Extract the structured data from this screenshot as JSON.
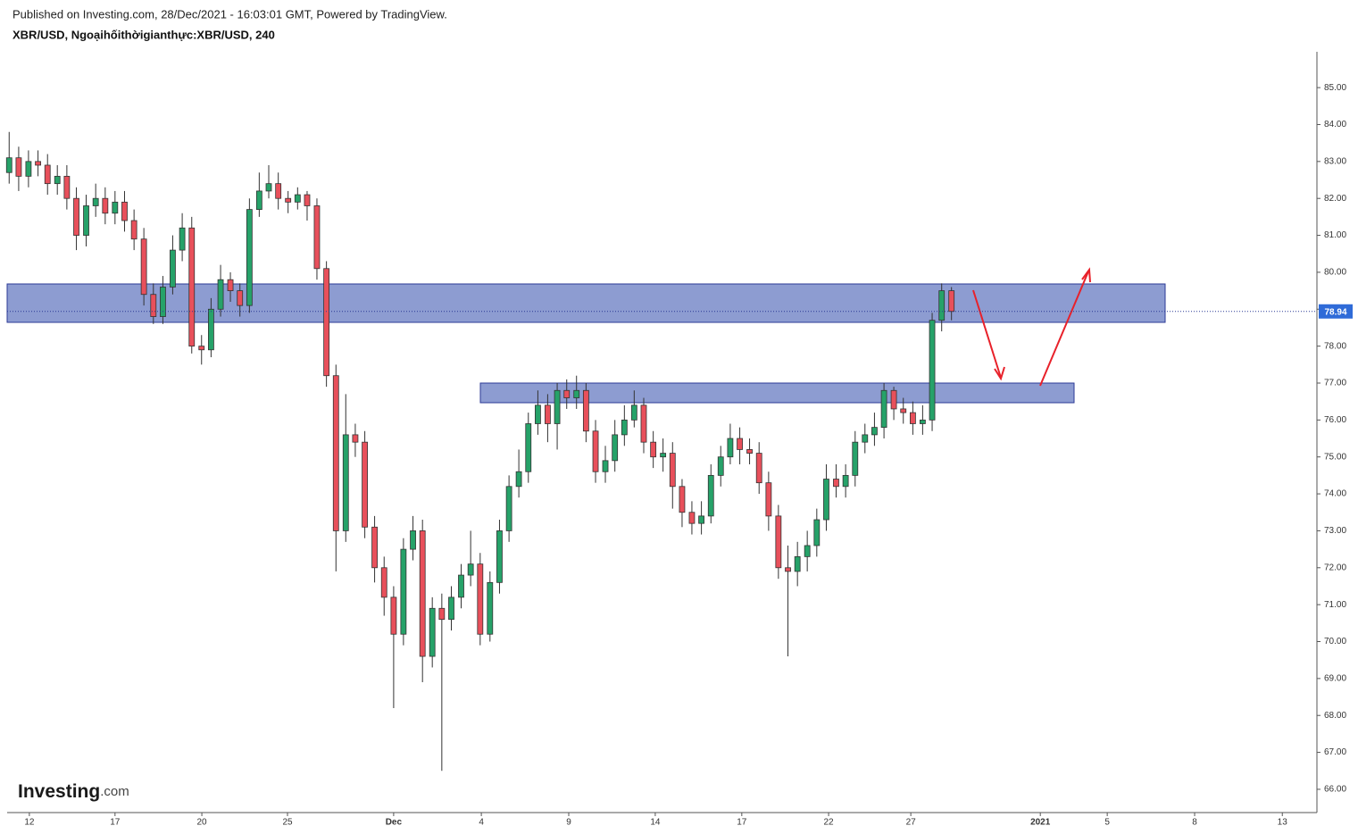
{
  "header": {
    "published": "Published on Investing.com, 28/Dec/2021 - 16:03:01 GMT, Powered by TradingView.",
    "symbol": "XBR/USD, Ngoạihốithờigianthực:XBR/USD, 240"
  },
  "logo": {
    "brand": "Investing",
    "suffix": ".com"
  },
  "chart_data": {
    "type": "candlestick",
    "up_color": "#26a269",
    "down_color": "#e8505b",
    "x": [
      -0.7,
      -0.37,
      -0.03,
      0.3,
      0.63,
      0.97,
      1.3,
      1.63,
      1.97,
      2.3,
      2.63,
      2.97,
      3.3,
      3.63,
      3.97,
      4.3,
      4.63,
      4.97,
      5.3,
      5.63,
      5.97,
      6.3,
      6.63,
      6.97,
      7.3,
      7.63,
      7.97,
      8.3,
      8.63,
      8.97,
      9.3,
      9.63,
      9.97,
      10.3,
      10.63,
      10.97,
      11.3,
      11.63,
      11.97,
      12.3,
      12.63,
      12.97,
      13.3,
      13.63,
      13.97,
      14.3,
      14.63,
      14.97,
      15.3,
      15.63,
      15.97,
      16.3,
      16.63,
      16.97,
      17.3,
      17.63,
      17.97,
      18.3,
      18.63,
      18.97,
      19.3,
      19.63,
      19.97,
      20.3,
      20.63,
      20.97,
      21.3,
      21.63,
      21.97,
      22.3,
      22.63,
      22.97,
      23.3,
      23.63,
      23.97,
      24.3,
      24.63,
      24.97,
      25.3,
      25.63,
      25.97,
      26.3,
      26.63,
      26.97,
      27.3,
      27.63,
      27.97,
      28.3,
      28.63,
      28.97,
      29.3,
      29.63,
      29.97,
      30.3,
      30.63,
      30.97,
      31.3,
      31.63,
      31.97
    ],
    "open": [
      82.7,
      83.1,
      82.6,
      83.0,
      82.9,
      82.4,
      82.6,
      82.0,
      81.0,
      81.8,
      82.0,
      81.6,
      81.9,
      81.4,
      80.9,
      79.4,
      78.8,
      79.6,
      80.6,
      81.2,
      78.0,
      77.9,
      79.0,
      79.8,
      79.5,
      79.1,
      81.7,
      82.2,
      82.4,
      82.0,
      81.9,
      82.1,
      81.8,
      80.1,
      77.2,
      73.0,
      75.6,
      75.4,
      73.1,
      72.0,
      71.2,
      70.2,
      72.5,
      73.0,
      69.6,
      70.9,
      70.6,
      71.2,
      71.8,
      72.1,
      70.2,
      71.6,
      73.0,
      74.2,
      74.6,
      75.9,
      76.4,
      75.9,
      76.8,
      76.6,
      76.8,
      75.7,
      74.6,
      74.9,
      75.6,
      76.0,
      76.4,
      75.4,
      75.0,
      75.1,
      74.2,
      73.5,
      73.2,
      73.4,
      74.5,
      75.0,
      75.5,
      75.2,
      75.1,
      74.3,
      73.4,
      72.0,
      71.9,
      72.3,
      72.6,
      73.3,
      74.4,
      74.2,
      74.5,
      75.4,
      75.6,
      75.8,
      76.8,
      76.3,
      76.2,
      75.9,
      76.0,
      78.7,
      79.5
    ],
    "high": [
      83.8,
      83.4,
      83.3,
      83.3,
      83.2,
      82.9,
      82.9,
      82.3,
      82.1,
      82.4,
      82.3,
      82.2,
      82.2,
      81.7,
      81.2,
      79.7,
      79.9,
      81.0,
      81.6,
      81.5,
      78.3,
      79.3,
      80.2,
      80.0,
      79.7,
      82.0,
      82.7,
      82.9,
      82.7,
      82.2,
      82.3,
      82.2,
      82.0,
      80.3,
      77.5,
      76.7,
      75.9,
      75.7,
      73.4,
      72.3,
      71.5,
      72.8,
      73.4,
      73.3,
      71.2,
      71.3,
      71.5,
      72.1,
      73.0,
      72.4,
      71.9,
      73.3,
      74.5,
      75.2,
      76.2,
      76.8,
      76.7,
      77.0,
      77.1,
      77.2,
      77.0,
      76.0,
      75.3,
      76.0,
      76.4,
      76.8,
      76.6,
      75.7,
      75.5,
      75.4,
      74.4,
      73.8,
      73.8,
      74.8,
      75.3,
      75.9,
      75.8,
      75.5,
      75.4,
      74.6,
      73.7,
      72.6,
      72.7,
      73.0,
      73.6,
      74.8,
      74.8,
      74.8,
      75.7,
      75.9,
      76.2,
      77.0,
      76.9,
      76.6,
      76.5,
      76.4,
      78.9,
      79.7,
      79.6
    ],
    "low": [
      82.4,
      82.2,
      82.3,
      82.6,
      82.1,
      82.1,
      81.7,
      80.6,
      80.7,
      81.5,
      81.3,
      81.3,
      81.1,
      80.6,
      79.1,
      78.6,
      78.6,
      79.4,
      80.3,
      77.8,
      77.5,
      77.7,
      78.8,
      79.2,
      78.8,
      78.9,
      81.5,
      82.0,
      81.7,
      81.6,
      81.7,
      81.4,
      79.8,
      76.9,
      71.9,
      72.7,
      75.0,
      72.8,
      71.6,
      70.7,
      68.2,
      69.9,
      72.2,
      68.9,
      69.3,
      66.5,
      70.3,
      70.9,
      71.5,
      69.9,
      70.0,
      71.3,
      72.7,
      73.9,
      74.3,
      75.6,
      75.4,
      75.2,
      76.3,
      76.3,
      75.4,
      74.3,
      74.3,
      74.6,
      75.3,
      75.8,
      75.1,
      74.7,
      74.6,
      73.6,
      73.1,
      72.9,
      72.9,
      73.2,
      74.2,
      74.8,
      74.8,
      74.8,
      74.0,
      73.0,
      71.7,
      69.6,
      71.5,
      71.9,
      72.3,
      73.0,
      73.9,
      73.9,
      74.2,
      75.1,
      75.3,
      75.5,
      76.0,
      75.9,
      75.6,
      75.6,
      75.7,
      78.4,
      78.7
    ],
    "close": [
      83.1,
      82.6,
      83.0,
      82.9,
      82.4,
      82.6,
      82.0,
      81.0,
      81.8,
      82.0,
      81.6,
      81.9,
      81.4,
      80.9,
      79.4,
      78.8,
      79.6,
      80.6,
      81.2,
      78.0,
      77.9,
      79.0,
      79.8,
      79.5,
      79.1,
      81.7,
      82.2,
      82.4,
      82.0,
      81.9,
      82.1,
      81.8,
      80.1,
      77.2,
      73.0,
      75.6,
      75.4,
      73.1,
      72.0,
      71.2,
      70.2,
      72.5,
      73.0,
      69.6,
      70.9,
      70.6,
      71.2,
      71.8,
      72.1,
      70.2,
      71.6,
      73.0,
      74.2,
      74.6,
      75.9,
      76.4,
      75.9,
      76.8,
      76.6,
      76.8,
      75.7,
      74.6,
      74.9,
      75.6,
      76.0,
      76.4,
      75.4,
      75.0,
      75.1,
      74.2,
      73.5,
      73.2,
      73.4,
      74.5,
      75.0,
      75.5,
      75.2,
      75.1,
      74.3,
      73.4,
      72.0,
      71.9,
      72.3,
      72.6,
      73.3,
      74.4,
      74.2,
      74.5,
      75.4,
      75.6,
      75.8,
      76.8,
      76.3,
      76.2,
      75.9,
      76.0,
      78.7,
      79.5,
      78.94
    ],
    "last_price": 78.94,
    "xlim": [
      -0.77,
      44.64
    ],
    "xticks": [
      {
        "value": 0,
        "label": "12"
      },
      {
        "value": 2.97,
        "label": "17"
      },
      {
        "value": 5.98,
        "label": "20"
      },
      {
        "value": 8.95,
        "label": "25"
      },
      {
        "value": 12.63,
        "label": "Dec"
      },
      {
        "value": 15.67,
        "label": "4"
      },
      {
        "value": 18.7,
        "label": "9"
      },
      {
        "value": 21.7,
        "label": "14"
      },
      {
        "value": 24.7,
        "label": "17"
      },
      {
        "value": 27.71,
        "label": "22"
      },
      {
        "value": 30.56,
        "label": "27"
      },
      {
        "value": 35.05,
        "label": "2021"
      },
      {
        "value": 37.37,
        "label": "5"
      },
      {
        "value": 40.4,
        "label": "8"
      },
      {
        "value": 43.44,
        "label": "13"
      }
    ],
    "ylim": [
      65.37,
      85.97
    ],
    "yticks": [
      {
        "value": 66,
        "label": "66.00"
      },
      {
        "value": 67,
        "label": "67.00"
      },
      {
        "value": 68,
        "label": "68.00"
      },
      {
        "value": 69,
        "label": "69.00"
      },
      {
        "value": 70,
        "label": "70.00"
      },
      {
        "value": 71,
        "label": "71.00"
      },
      {
        "value": 72,
        "label": "72.00"
      },
      {
        "value": 73,
        "label": "73.00"
      },
      {
        "value": 74,
        "label": "74.00"
      },
      {
        "value": 75,
        "label": "75.00"
      },
      {
        "value": 76,
        "label": "76.00"
      },
      {
        "value": 77,
        "label": "77.00"
      },
      {
        "value": 78,
        "label": "78.00"
      },
      {
        "value": 79,
        "label": "79.00"
      },
      {
        "value": 80,
        "label": "80.00"
      },
      {
        "value": 81,
        "label": "81.00"
      },
      {
        "value": 82,
        "label": "82.00"
      },
      {
        "value": 83,
        "label": "83.00"
      },
      {
        "value": 84,
        "label": "84.00"
      },
      {
        "value": 85,
        "label": "85.00"
      }
    ]
  }
}
